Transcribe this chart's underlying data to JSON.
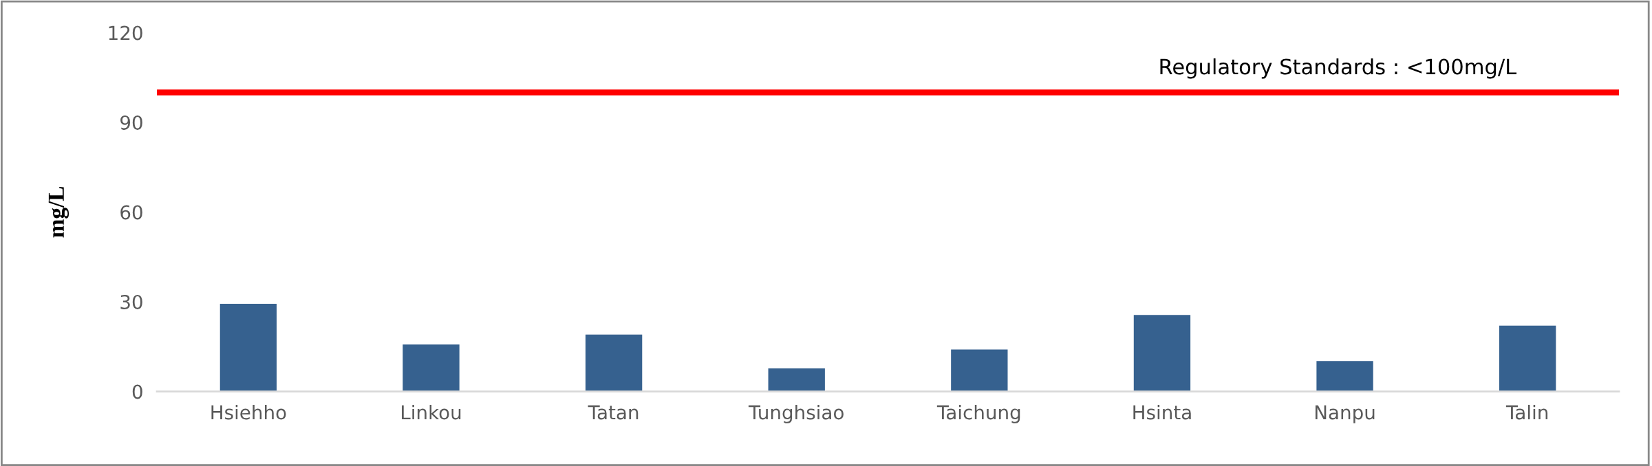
{
  "chart_data": {
    "type": "bar",
    "ylabel": "mg/L",
    "categories": [
      "Hsiehho",
      "Linkou",
      "Tatan",
      "Tunghsiao",
      "Taichung",
      "Hsinta",
      "Nanpu",
      "Talin"
    ],
    "values": [
      29.3,
      15.7,
      19.0,
      7.7,
      14.0,
      25.6,
      10.2,
      22.0
    ],
    "color": "#36618f",
    "ylim": [
      0,
      120
    ],
    "yticks": [
      0,
      30,
      60,
      90,
      120
    ],
    "grid": false,
    "ref_lines": [
      {
        "axis": "y",
        "value": 100,
        "label": "Regulatory Standards : <100mg/L",
        "color": "#ff0000",
        "line_style": "solid"
      }
    ]
  }
}
